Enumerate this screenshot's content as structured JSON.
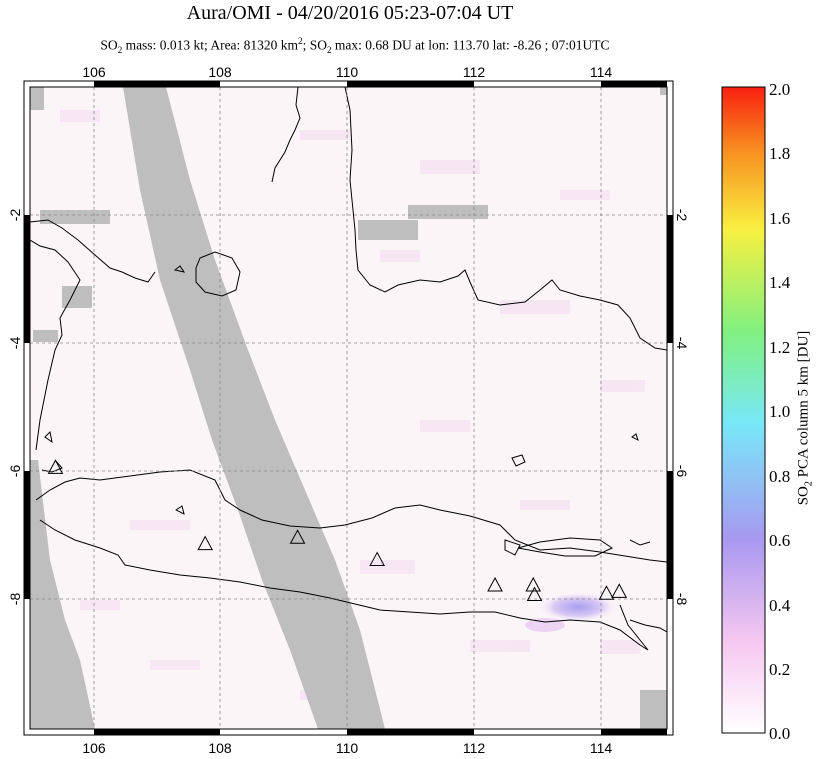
{
  "title": "Aura/OMI - 04/20/2016 05:23-07:04 UT",
  "subtitle": {
    "so2_label": "SO",
    "so2_sub": "2",
    "mass_text": " mass: 0.013 kt; Area: 81320 km",
    "area_sup": "2",
    "max_prefix": "; SO",
    "max_sub": "2",
    "max_text": " max: 0.68 DU at lon: 113.70 lat: -8.26 ; 07:01UTC"
  },
  "map": {
    "lon_ticks": [
      "106",
      "108",
      "110",
      "112",
      "114"
    ],
    "lat_ticks": [
      "-2",
      "-4",
      "-6",
      "-8"
    ],
    "lon_range": [
      105,
      115
    ],
    "lat_range": [
      -10.2,
      -0.1
    ],
    "volcano_icon": "triangle-icon",
    "volcanoes": [
      {
        "lon": 105.4,
        "lat": -6.1
      },
      {
        "lon": 107.75,
        "lat": -7.3
      },
      {
        "lon": 109.2,
        "lat": -7.2
      },
      {
        "lon": 110.45,
        "lat": -7.55
      },
      {
        "lon": 112.3,
        "lat": -7.95
      },
      {
        "lon": 112.9,
        "lat": -7.95
      },
      {
        "lon": 112.92,
        "lat": -8.1
      },
      {
        "lon": 114.05,
        "lat": -8.08
      },
      {
        "lon": 114.25,
        "lat": -8.05
      }
    ]
  },
  "colorbar": {
    "ticks": [
      "2.0",
      "1.8",
      "1.6",
      "1.4",
      "1.2",
      "1.0",
      "0.8",
      "0.6",
      "0.4",
      "0.2",
      "0.0"
    ],
    "label_main": "SO",
    "label_sub": "2",
    "label_rest": " PCA column 5 km [DU]",
    "colors": [
      "#ffffff",
      "#f5c8f0",
      "#a898f0",
      "#78e8f8",
      "#80f080",
      "#f8f040",
      "#f89020",
      "#f82010"
    ]
  }
}
